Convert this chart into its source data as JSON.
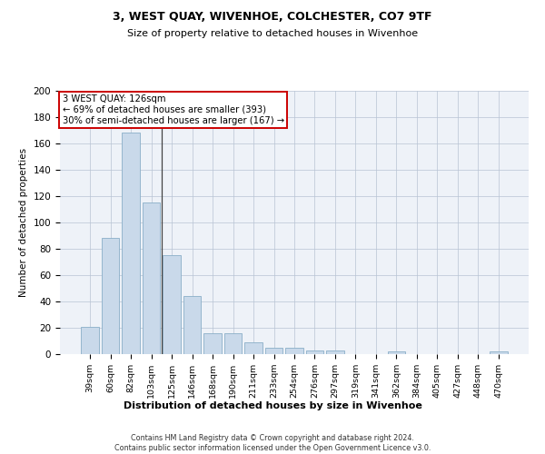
{
  "title": "3, WEST QUAY, WIVENHOE, COLCHESTER, CO7 9TF",
  "subtitle": "Size of property relative to detached houses in Wivenhoe",
  "xlabel": "Distribution of detached houses by size in Wivenhoe",
  "ylabel": "Number of detached properties",
  "categories": [
    "39sqm",
    "60sqm",
    "82sqm",
    "103sqm",
    "125sqm",
    "146sqm",
    "168sqm",
    "190sqm",
    "211sqm",
    "233sqm",
    "254sqm",
    "276sqm",
    "297sqm",
    "319sqm",
    "341sqm",
    "362sqm",
    "384sqm",
    "405sqm",
    "427sqm",
    "448sqm",
    "470sqm"
  ],
  "values": [
    21,
    88,
    168,
    115,
    75,
    44,
    16,
    16,
    9,
    5,
    5,
    3,
    3,
    0,
    0,
    2,
    0,
    0,
    0,
    0,
    2
  ],
  "bar_color": "#c9d9ea",
  "bar_edge_color": "#8aafc8",
  "background_color": "#eef2f8",
  "annotation_text": "3 WEST QUAY: 126sqm\n← 69% of detached houses are smaller (393)\n30% of semi-detached houses are larger (167) →",
  "annotation_box_color": "#ffffff",
  "annotation_box_edge": "#cc0000",
  "vertical_line_x": 3.5,
  "ylim": [
    0,
    200
  ],
  "yticks": [
    0,
    20,
    40,
    60,
    80,
    100,
    120,
    140,
    160,
    180,
    200
  ],
  "footnote": "Contains HM Land Registry data © Crown copyright and database right 2024.\nContains public sector information licensed under the Open Government Licence v3.0."
}
